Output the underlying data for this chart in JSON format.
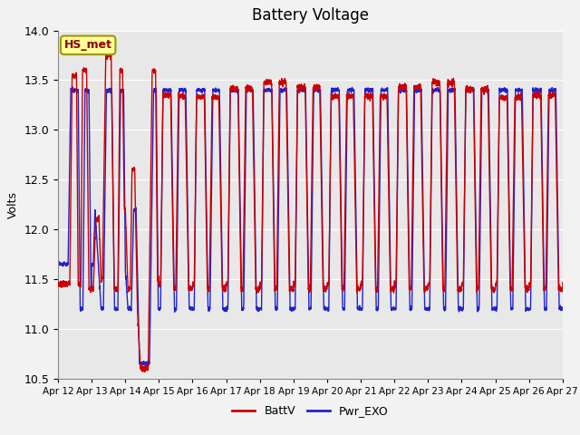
{
  "title": "Battery Voltage",
  "ylabel": "Volts",
  "xlim_start": 0,
  "xlim_end": 15,
  "ylim": [
    10.5,
    14.0
  ],
  "yticks": [
    10.5,
    11.0,
    11.5,
    12.0,
    12.5,
    13.0,
    13.5,
    14.0
  ],
  "xtick_labels": [
    "Apr 12",
    "Apr 13",
    "Apr 14",
    "Apr 15",
    "Apr 16",
    "Apr 17",
    "Apr 18",
    "Apr 19",
    "Apr 20",
    "Apr 21",
    "Apr 22",
    "Apr 23",
    "Apr 24",
    "Apr 25",
    "Apr 26",
    "Apr 27"
  ],
  "legend_labels": [
    "BattV",
    "Pwr_EXO"
  ],
  "line_red_color": "#cc0000",
  "line_blue_color": "#2222cc",
  "annotation_text": "HS_met",
  "plot_bg_color": "#e8e8e8",
  "fig_bg_color": "#f2f2f2",
  "grid_color": "white",
  "title_fontsize": 12,
  "axis_fontsize": 9,
  "legend_fontsize": 9
}
